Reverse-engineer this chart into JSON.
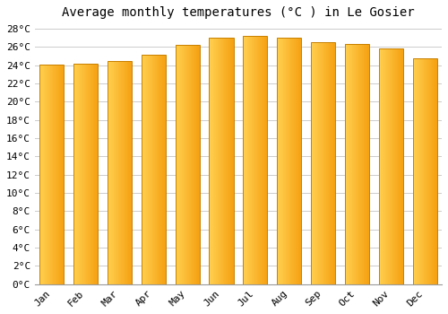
{
  "title": "Average monthly temperatures (°C ) in Le Gosier",
  "months": [
    "Jan",
    "Feb",
    "Mar",
    "Apr",
    "May",
    "Jun",
    "Jul",
    "Aug",
    "Sep",
    "Oct",
    "Nov",
    "Dec"
  ],
  "values": [
    24.1,
    24.2,
    24.5,
    25.2,
    26.2,
    27.0,
    27.2,
    27.0,
    26.5,
    26.3,
    25.8,
    24.8
  ],
  "bar_color_left": "#FFD050",
  "bar_color_right": "#F5A010",
  "bar_edge_color": "#C88000",
  "background_color": "#FFFFFF",
  "grid_color": "#CCCCCC",
  "ytick_min": 0,
  "ytick_max": 28,
  "ytick_step": 2,
  "title_fontsize": 10,
  "tick_fontsize": 8,
  "font_family": "monospace",
  "bar_width": 0.72,
  "n_grad": 80
}
